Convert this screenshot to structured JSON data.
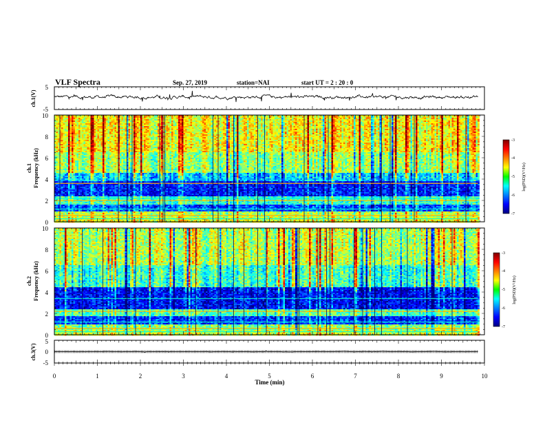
{
  "header": {
    "title": "VLF Spectra",
    "date": "Sep. 27, 2019",
    "station": "station=NAI",
    "start_ut": "start UT =  2 : 20 : 0"
  },
  "panels": {
    "ch1_voltage": {
      "ylabel": "ch.1(V)",
      "ticks": [
        "5",
        "-5"
      ]
    },
    "ch1_spec": {
      "ylabel_top": "ch.1",
      "ylabel": "Frequency (kHz)",
      "ticks": [
        "10",
        "8",
        "6",
        "4",
        "2",
        "0"
      ]
    },
    "ch2_spec": {
      "ylabel_top": "ch.2",
      "ylabel": "Frequency (kHz)",
      "ticks": [
        "10",
        "8",
        "6",
        "4",
        "2",
        "0"
      ]
    },
    "ch3_voltage": {
      "ylabel": "ch.3(V)",
      "ticks": [
        "5",
        "0",
        "-5"
      ]
    }
  },
  "colorbar": {
    "label": "log(PSD)(V²/Hz)",
    "ticks": [
      "-3",
      "-4",
      "-5",
      "-6",
      "-7"
    ]
  },
  "xaxis": {
    "label": "Time (min)",
    "ticks": [
      "0",
      "1",
      "2",
      "3",
      "4",
      "5",
      "6",
      "7",
      "8",
      "9",
      "10"
    ]
  },
  "chart_data": [
    {
      "type": "line",
      "name": "ch.1 voltage",
      "x_range": [
        0,
        9.85
      ],
      "ylim": [
        -5,
        5
      ],
      "mean_value": 0.5,
      "fluctuation_approx": 1.5
    },
    {
      "type": "heatmap",
      "name": "ch.1 spectrogram",
      "xlim": [
        0,
        10
      ],
      "ylim": [
        0,
        10
      ],
      "data_end_min": 9.85,
      "color_range": [
        -7,
        -3
      ],
      "band_levels": [
        {
          "freq_from": 0,
          "freq_to": 0.5,
          "log_psd": -4.6
        },
        {
          "freq_from": 0.5,
          "freq_to": 1.0,
          "log_psd": -4.8
        },
        {
          "freq_from": 1.0,
          "freq_to": 1.6,
          "log_psd": -6.2
        },
        {
          "freq_from": 1.6,
          "freq_to": 2.4,
          "log_psd": -5.3
        },
        {
          "freq_from": 2.4,
          "freq_to": 3.8,
          "log_psd": -6.4
        },
        {
          "freq_from": 3.8,
          "freq_to": 4.6,
          "log_psd": -5.7
        },
        {
          "freq_from": 4.6,
          "freq_to": 6.5,
          "log_psd": -4.9
        },
        {
          "freq_from": 6.5,
          "freq_to": 10.0,
          "log_psd": -4.5
        }
      ],
      "transmitter_lines_khz": [
        0.3,
        0.6,
        1.2,
        2.0,
        2.2,
        3.6
      ]
    },
    {
      "type": "heatmap",
      "name": "ch.2 spectrogram",
      "xlim": [
        0,
        10
      ],
      "ylim": [
        0,
        10
      ],
      "data_end_min": 9.85,
      "color_range": [
        -7,
        -3
      ],
      "band_levels": [
        {
          "freq_from": 0,
          "freq_to": 0.5,
          "log_psd": -4.7
        },
        {
          "freq_from": 0.5,
          "freq_to": 1.0,
          "log_psd": -5.0
        },
        {
          "freq_from": 1.0,
          "freq_to": 1.8,
          "log_psd": -6.3
        },
        {
          "freq_from": 1.8,
          "freq_to": 2.4,
          "log_psd": -5.2
        },
        {
          "freq_from": 2.4,
          "freq_to": 4.5,
          "log_psd": -6.5
        },
        {
          "freq_from": 4.5,
          "freq_to": 6.5,
          "log_psd": -5.3
        },
        {
          "freq_from": 6.5,
          "freq_to": 10.0,
          "log_psd": -4.8
        }
      ],
      "transmitter_lines_khz": [
        0.3,
        0.6,
        1.2,
        2.2,
        3.4
      ]
    },
    {
      "type": "line",
      "name": "ch.3 voltage",
      "x_range": [
        0,
        9.85
      ],
      "ylim": [
        -5,
        5
      ],
      "mean_value": 0.0,
      "fluctuation_approx": 0.2
    }
  ]
}
